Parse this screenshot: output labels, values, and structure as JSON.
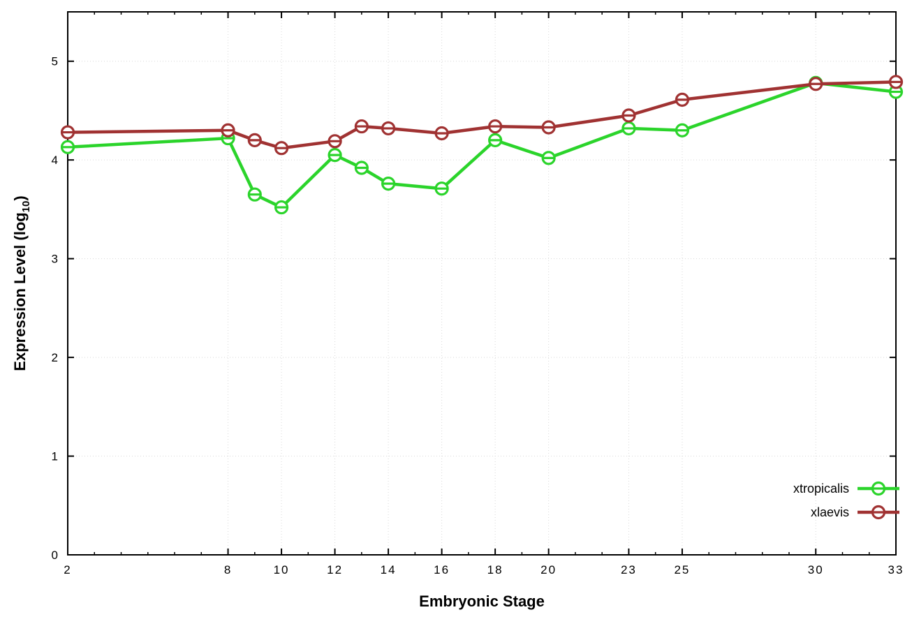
{
  "chart_data": {
    "type": "line",
    "title": "",
    "xlabel": "Embryonic Stage",
    "ylabel": "Expression Level (log10)",
    "ylabel_parts": {
      "main": "Expression Level (log",
      "sub": "10",
      "suffix": ")"
    },
    "xlim": [
      2,
      33
    ],
    "ylim": [
      0,
      5.5
    ],
    "x_ticks": [
      2,
      8,
      10,
      12,
      14,
      16,
      18,
      20,
      23,
      25,
      30,
      33
    ],
    "y_ticks": [
      0,
      1,
      2,
      3,
      4,
      5
    ],
    "grid": true,
    "legend_position": "inside-bottom-right",
    "marker": "open-circle-with-horizontal-bar",
    "x": [
      2,
      8,
      9,
      10,
      12,
      13,
      14,
      16,
      18,
      20,
      23,
      25,
      30,
      33
    ],
    "series": [
      {
        "name": "xtropicalis",
        "color": "#2bd42b",
        "values": [
          4.13,
          4.22,
          3.65,
          3.52,
          4.05,
          3.92,
          3.76,
          3.71,
          4.2,
          4.02,
          4.32,
          4.3,
          4.78,
          4.69
        ]
      },
      {
        "name": "xlaevis",
        "color": "#a03232",
        "values": [
          4.28,
          4.3,
          4.2,
          4.12,
          4.19,
          4.34,
          4.32,
          4.27,
          4.34,
          4.33,
          4.45,
          4.61,
          4.77,
          4.79
        ]
      }
    ],
    "colors": {
      "grid": "#d8d8d8",
      "axis": "#000000",
      "background": "#ffffff"
    }
  }
}
